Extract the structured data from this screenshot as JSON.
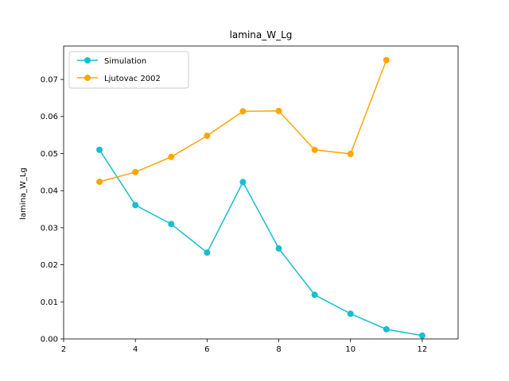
{
  "chart_data": {
    "type": "line",
    "title": "lamina_W_Lg",
    "xlabel": "",
    "ylabel": "lamina_W_Lg",
    "xlim": [
      2,
      13
    ],
    "ylim": [
      0,
      0.079
    ],
    "xticks": [
      2,
      4,
      6,
      8,
      10,
      12
    ],
    "yticks": [
      0.0,
      0.01,
      0.02,
      0.03,
      0.04,
      0.05,
      0.06,
      0.07
    ],
    "xtick_labels": [
      "2",
      "4",
      "6",
      "8",
      "10",
      "12"
    ],
    "ytick_labels": [
      "0.00",
      "0.01",
      "0.02",
      "0.03",
      "0.04",
      "0.05",
      "0.06",
      "0.07"
    ],
    "grid": false,
    "legend_position": "upper-left",
    "series": [
      {
        "name": "Simulation",
        "color": "#17becf",
        "marker": "circle",
        "x": [
          3,
          4,
          5,
          6,
          7,
          8,
          9,
          10,
          11,
          12
        ],
        "y": [
          0.051,
          0.0361,
          0.031,
          0.0233,
          0.0423,
          0.0244,
          0.0119,
          0.0068,
          0.0026,
          0.0009
        ]
      },
      {
        "name": "Ljutovac 2002",
        "color": "#ffa500",
        "marker": "circle",
        "x": [
          3,
          4,
          5,
          6,
          7,
          8,
          9,
          10,
          11
        ],
        "y": [
          0.0424,
          0.045,
          0.0491,
          0.0548,
          0.0614,
          0.0615,
          0.051,
          0.0499,
          0.0752
        ]
      }
    ]
  }
}
